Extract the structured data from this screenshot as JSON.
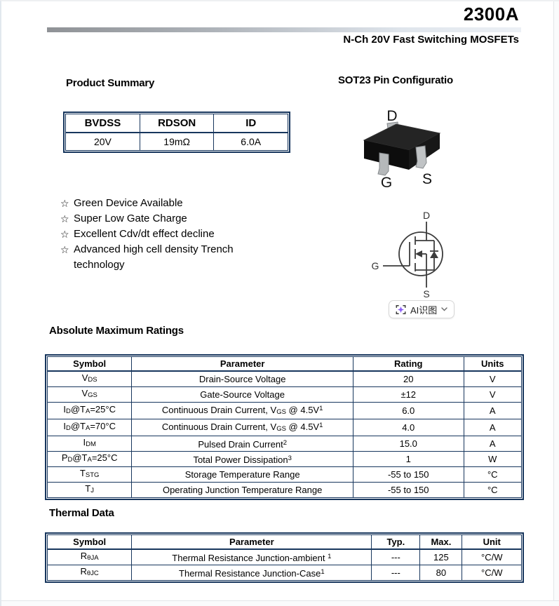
{
  "page": {
    "title": "2300A",
    "subtitle": "N-Ch 20V Fast Switching MOSFETs"
  },
  "product_summary": {
    "heading": "Product Summary",
    "columns": [
      "BVDSS",
      "RDSON",
      "ID"
    ],
    "values": [
      "20V",
      "19mΩ",
      "6.0A"
    ]
  },
  "pin_configuration": {
    "heading": "SOT23 Pin Configuratio",
    "drain": "D",
    "gate": "G",
    "source": "S"
  },
  "features": {
    "bullet": "☆",
    "items": [
      "Green Device Available",
      "Super Low Gate Charge",
      "Excellent Cdv/dt effect decline",
      "Advanced high cell density Trench technology"
    ]
  },
  "mosfet_symbol": {
    "drain": "D",
    "gate": "G",
    "source": "S"
  },
  "ai_overlay": {
    "label": "AI识图",
    "icon": "ai-scan-icon",
    "chevron_icon": "chevron-down-icon"
  },
  "absolute_maximum_ratings": {
    "heading": "Absolute Maximum Ratings",
    "columns": [
      "Symbol",
      "Parameter",
      "Rating",
      "Units"
    ],
    "rows": [
      {
        "symbol": "V<sub>DS</sub>",
        "parameter": "Drain-Source Voltage",
        "rating": "20",
        "units": "V"
      },
      {
        "symbol": "V<sub>GS</sub>",
        "parameter": "Gate-Source Voltage",
        "rating": "±12",
        "units": "V"
      },
      {
        "symbol": "I<sub>D</sub>@T<sub>A</sub>=25°C",
        "parameter": "Continuous Drain Current, V<sub>GS</sub> @ 4.5V<sup>1</sup>",
        "rating": "6.0",
        "units": "A"
      },
      {
        "symbol": "I<sub>D</sub>@T<sub>A</sub>=70°C",
        "parameter": "Continuous Drain Current, V<sub>GS</sub> @ 4.5V<sup>1</sup>",
        "rating": "4.0",
        "units": "A"
      },
      {
        "symbol": "I<sub>DM</sub>",
        "parameter": "Pulsed Drain Current<sup>2</sup>",
        "rating": "15.0",
        "units": "A"
      },
      {
        "symbol": "P<sub>D</sub>@T<sub>A</sub>=25°C",
        "parameter": "Total Power Dissipation<sup>3</sup>",
        "rating": "1",
        "units": "W"
      },
      {
        "symbol": "T<sub>STG</sub>",
        "parameter": "Storage Temperature Range",
        "rating": "-55 to 150",
        "units": "°C"
      },
      {
        "symbol": "T<sub>J</sub>",
        "parameter": "Operating Junction Temperature Range",
        "rating": "-55 to 150",
        "units": "°C"
      }
    ]
  },
  "thermal_data": {
    "heading": "Thermal Data",
    "columns": [
      "Symbol",
      "Parameter",
      "Typ.",
      "Max.",
      "Unit"
    ],
    "rows": [
      {
        "symbol": "R<sub>θJA</sub>",
        "parameter": "Thermal Resistance Junction-ambient <sup>1</sup>",
        "typ": "---",
        "max": "125",
        "unit": "°C/W"
      },
      {
        "symbol": "R<sub>θJC</sub>",
        "parameter": "Thermal Resistance Junction-Case<sup>1</sup>",
        "typ": "---",
        "max": "80",
        "unit": "°C/W"
      }
    ]
  },
  "colors": {
    "table_border": "#17365d",
    "ai_icon_purple": "#8a5cf6"
  }
}
